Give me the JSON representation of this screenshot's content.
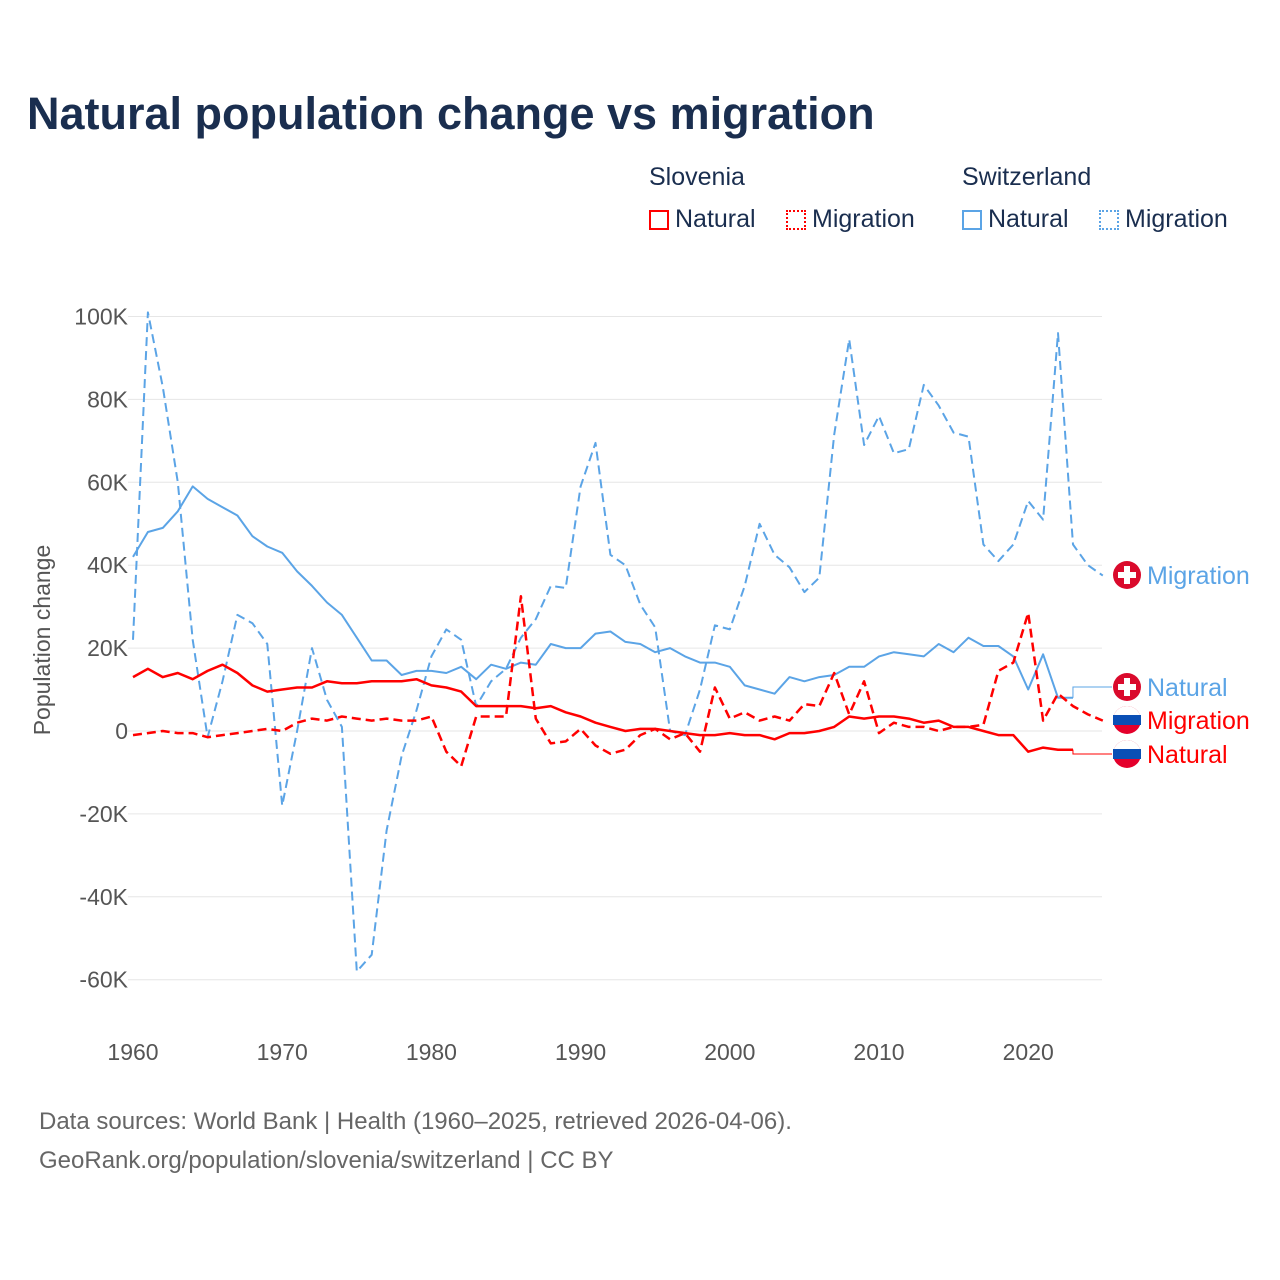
{
  "chart_data": {
    "type": "line",
    "title": "Natural population change vs migration",
    "ylabel": "Population change",
    "ylim": [
      -70000,
      105000
    ],
    "yticks": [
      {
        "v": 100000,
        "t": "100K"
      },
      {
        "v": 80000,
        "t": "80K"
      },
      {
        "v": 60000,
        "t": "60K"
      },
      {
        "v": 40000,
        "t": "40K"
      },
      {
        "v": 20000,
        "t": "20K"
      },
      {
        "v": 0,
        "t": "0"
      },
      {
        "v": -20000,
        "t": "-20K"
      },
      {
        "v": -40000,
        "t": "-40K"
      },
      {
        "v": -60000,
        "t": "-60K"
      }
    ],
    "xticks": [
      {
        "v": 1960,
        "t": "1960"
      },
      {
        "v": 1970,
        "t": "1970"
      },
      {
        "v": 1980,
        "t": "1980"
      },
      {
        "v": 1990,
        "t": "1990"
      },
      {
        "v": 2000,
        "t": "2000"
      },
      {
        "v": 2010,
        "t": "2010"
      },
      {
        "v": 2020,
        "t": "2020"
      }
    ],
    "x_start": 1960,
    "series": [
      {
        "name": "Switzerland Migration",
        "label": "Migration",
        "country": "Switzerland",
        "color": "#5ba4e6",
        "dash": true,
        "values": [
          22,
          101,
          83,
          60,
          22,
          -1.5,
          12,
          28,
          26,
          21,
          -18,
          0,
          20,
          7.5,
          1,
          -58,
          -54,
          -24,
          -6,
          5,
          18,
          24.5,
          22,
          6,
          12,
          15,
          22.5,
          27,
          35,
          34.5,
          59,
          69.5,
          42.5,
          40,
          30.5,
          25,
          0,
          -1,
          10,
          25.5,
          24.5,
          35,
          50,
          42.5,
          39.5,
          33.5,
          37,
          71.5,
          94.5,
          69,
          76,
          67,
          68,
          83.5,
          78.5,
          72,
          71,
          45,
          41,
          45,
          55.5,
          51,
          96,
          45,
          40,
          37.5
        ]
      },
      {
        "name": "Switzerland Natural",
        "label": "Natural",
        "country": "Switzerland",
        "color": "#5ba4e6",
        "dash": false,
        "values": [
          42,
          48,
          49,
          53,
          59,
          56,
          54,
          52,
          47,
          44.5,
          43,
          38.5,
          35,
          31,
          28,
          22.5,
          17,
          17,
          13.5,
          14.5,
          14.5,
          14,
          15.5,
          12.5,
          16,
          15,
          16.5,
          16,
          21,
          20,
          20,
          23.5,
          24,
          21.5,
          21,
          19,
          20,
          18,
          16.5,
          16.5,
          15.5,
          11,
          10,
          9,
          13,
          12,
          13,
          13.5,
          15.5,
          15.5,
          18,
          19,
          18.5,
          18,
          21,
          19,
          22.5,
          20.5,
          20.5,
          18,
          10,
          18.5,
          8,
          8
        ]
      },
      {
        "name": "Slovenia Migration",
        "label": "Migration",
        "country": "Slovenia",
        "color": "#ff0000",
        "dash": true,
        "values": [
          -1,
          -0.5,
          0,
          -0.5,
          -0.5,
          -1.5,
          -1,
          -0.5,
          0,
          0.5,
          0,
          2,
          3,
          2.5,
          3.5,
          3,
          2.5,
          3,
          2.5,
          2.5,
          3.5,
          -5,
          -8.5,
          3.5,
          3.5,
          3.5,
          32.5,
          3,
          -3,
          -2.5,
          0.5,
          -3.5,
          -5.5,
          -4.5,
          -1,
          0.5,
          -2,
          -0.5,
          -5,
          10.5,
          3,
          4.5,
          2.5,
          3.5,
          2.5,
          6.5,
          6,
          14,
          4,
          12,
          -0.5,
          2,
          1,
          1,
          0,
          1,
          1,
          1.5,
          14.5,
          16.5,
          28.5,
          2.5,
          9,
          6,
          4,
          2.5
        ]
      },
      {
        "name": "Slovenia Natural",
        "label": "Natural",
        "country": "Slovenia",
        "color": "#ff0000",
        "dash": false,
        "values": [
          13,
          15,
          13,
          14,
          12.5,
          14.5,
          16,
          14,
          11,
          9.5,
          10,
          10.5,
          10.5,
          12,
          11.5,
          11.5,
          12,
          12,
          12,
          12.5,
          11,
          10.5,
          9.5,
          6,
          6,
          6,
          6,
          5.5,
          6,
          4.5,
          3.5,
          2,
          1,
          0,
          0.5,
          0.5,
          0,
          -0.5,
          -1,
          -1,
          -0.5,
          -1,
          -1,
          -2,
          -0.5,
          -0.5,
          0,
          1,
          3.5,
          3,
          3.5,
          3.5,
          3,
          2,
          2.5,
          1,
          1,
          0,
          -1,
          -1,
          -5,
          -4,
          -4.5,
          -4.5
        ]
      }
    ],
    "value_unit": "thousands"
  },
  "legend": {
    "slovenia": "Slovenia",
    "switzerland": "Switzerland",
    "natural": "Natural",
    "migration": "Migration"
  },
  "source": {
    "line1": "Data sources: World Bank | Health (1960–2025, retrieved 2026-04-06).",
    "line2": "GeoRank.org/population/slovenia/switzerland | CC BY"
  }
}
